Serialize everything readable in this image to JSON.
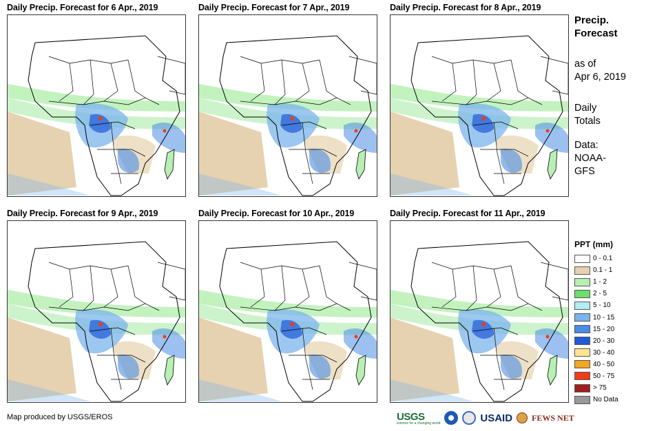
{
  "panels": [
    {
      "title": "Daily Precip. Forecast for 6 Apr., 2019"
    },
    {
      "title": "Daily Precip. Forecast for 7 Apr., 2019"
    },
    {
      "title": "Daily Precip. Forecast for 8 Apr., 2019"
    },
    {
      "title": "Daily Precip. Forecast for 9 Apr., 2019"
    },
    {
      "title": "Daily Precip. Forecast for 10 Apr., 2019"
    },
    {
      "title": "Daily Precip. Forecast for 11 Apr., 2019"
    }
  ],
  "side": {
    "title_line1": "Precip.",
    "title_line2": "Forecast",
    "asof_line1": "as of",
    "asof_line2": "Apr 6, 2019",
    "totals_line1": "Daily",
    "totals_line2": "Totals",
    "data_line1": "Data:",
    "data_line2": "NOAA-",
    "data_line3": "GFS"
  },
  "legend": {
    "title": "PPT (mm)",
    "items": [
      {
        "label": "0 - 0.1",
        "color": "#ffffff"
      },
      {
        "label": "0.1 - 1",
        "color": "#e6d2b0"
      },
      {
        "label": "1 - 2",
        "color": "#b8f0b4"
      },
      {
        "label": "2 - 5",
        "color": "#6fdc6c"
      },
      {
        "label": "5 - 10",
        "color": "#b4ecf4"
      },
      {
        "label": "10 - 15",
        "color": "#7bb4ec"
      },
      {
        "label": "15 - 20",
        "color": "#4a8ce4"
      },
      {
        "label": "20 - 30",
        "color": "#1f5ad8"
      },
      {
        "label": "30 - 40",
        "color": "#ffe68c"
      },
      {
        "label": "40 - 50",
        "color": "#f5a623"
      },
      {
        "label": "50 - 75",
        "color": "#f03c14"
      },
      {
        "label": "> 75",
        "color": "#a01e1e"
      },
      {
        "label": "No Data",
        "color": "#999999"
      }
    ]
  },
  "credit": "Map produced by USGS/EROS",
  "logos": {
    "usgs": "USGS",
    "usgs_tagline": "science for a changing world",
    "usaid": "USAID",
    "fews": "FEWS NET"
  }
}
